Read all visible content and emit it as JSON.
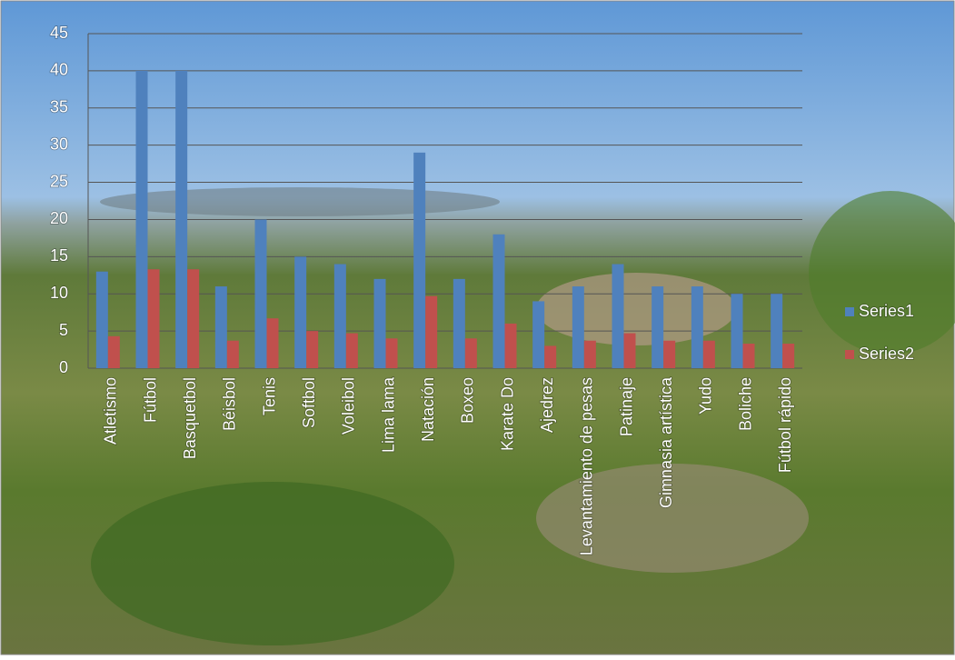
{
  "chart_data": {
    "type": "bar",
    "categories": [
      "Atletismo",
      "Fútbol",
      "Basquetbol",
      "Béisbol",
      "Tenis",
      "Softbol",
      "Voleibol",
      "Lima lama",
      "Natación",
      "Boxeo",
      "Karate Do",
      "Ajedrez",
      "Levantamiento de pesas",
      "Patinaje",
      "Gimnasia artística",
      "Yudo",
      "Boliche",
      "Fútbol rápido"
    ],
    "series": [
      {
        "name": "Series1",
        "color": "#4f81bd",
        "values": [
          13,
          40,
          40,
          11,
          20,
          15,
          14,
          12,
          29,
          12,
          18,
          9,
          11,
          14,
          11,
          11,
          10,
          10
        ]
      },
      {
        "name": "Series2",
        "color": "#c0504d",
        "values": [
          4.3,
          13.3,
          13.3,
          3.7,
          6.7,
          5,
          4.7,
          4,
          9.7,
          4,
          6,
          3,
          3.7,
          4.7,
          3.7,
          3.7,
          3.3,
          3.3
        ]
      }
    ],
    "ylim": [
      0,
      45
    ],
    "yticks": [
      0,
      5,
      10,
      15,
      20,
      25,
      30,
      35,
      40,
      45
    ],
    "grid": true,
    "legend": "right"
  }
}
